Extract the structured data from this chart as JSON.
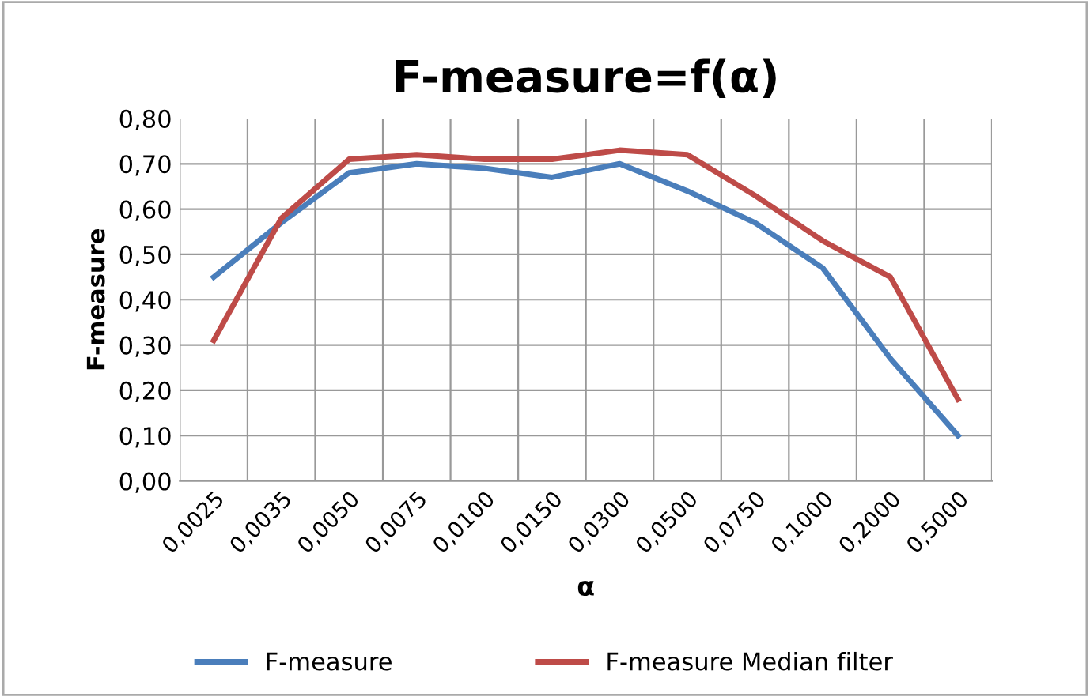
{
  "chart_data": {
    "type": "line",
    "title": "F-measure=f(α)",
    "xlabel": "α",
    "ylabel": "F-measure",
    "categories": [
      "0,0025",
      "0,0035",
      "0,0050",
      "0,0075",
      "0,0100",
      "0,0150",
      "0,0300",
      "0,0500",
      "0,0750",
      "0,1000",
      "0,2000",
      "0,5000"
    ],
    "series": [
      {
        "name": "F-measure",
        "color": "#4a7ebb",
        "values": [
          0.45,
          0.57,
          0.68,
          0.7,
          0.69,
          0.67,
          0.7,
          0.64,
          0.57,
          0.47,
          0.27,
          0.1
        ]
      },
      {
        "name": "F-measure Median filter",
        "color": "#be4b48",
        "values": [
          0.31,
          0.58,
          0.71,
          0.72,
          0.71,
          0.71,
          0.73,
          0.72,
          0.63,
          0.53,
          0.45,
          0.18
        ]
      }
    ],
    "ylim": [
      0,
      0.8
    ],
    "yticks": [
      {
        "value": 0,
        "label": "0,00"
      },
      {
        "value": 0.1,
        "label": "0,10"
      },
      {
        "value": 0.2,
        "label": "0,20"
      },
      {
        "value": 0.3,
        "label": "0,30"
      },
      {
        "value": 0.4,
        "label": "0,40"
      },
      {
        "value": 0.5,
        "label": "0,50"
      },
      {
        "value": 0.6,
        "label": "0,60"
      },
      {
        "value": 0.7,
        "label": "0,70"
      },
      {
        "value": 0.8,
        "label": "0,80"
      }
    ],
    "grid": true,
    "legend": "bottom",
    "marker": "none",
    "line_style": "solid"
  }
}
